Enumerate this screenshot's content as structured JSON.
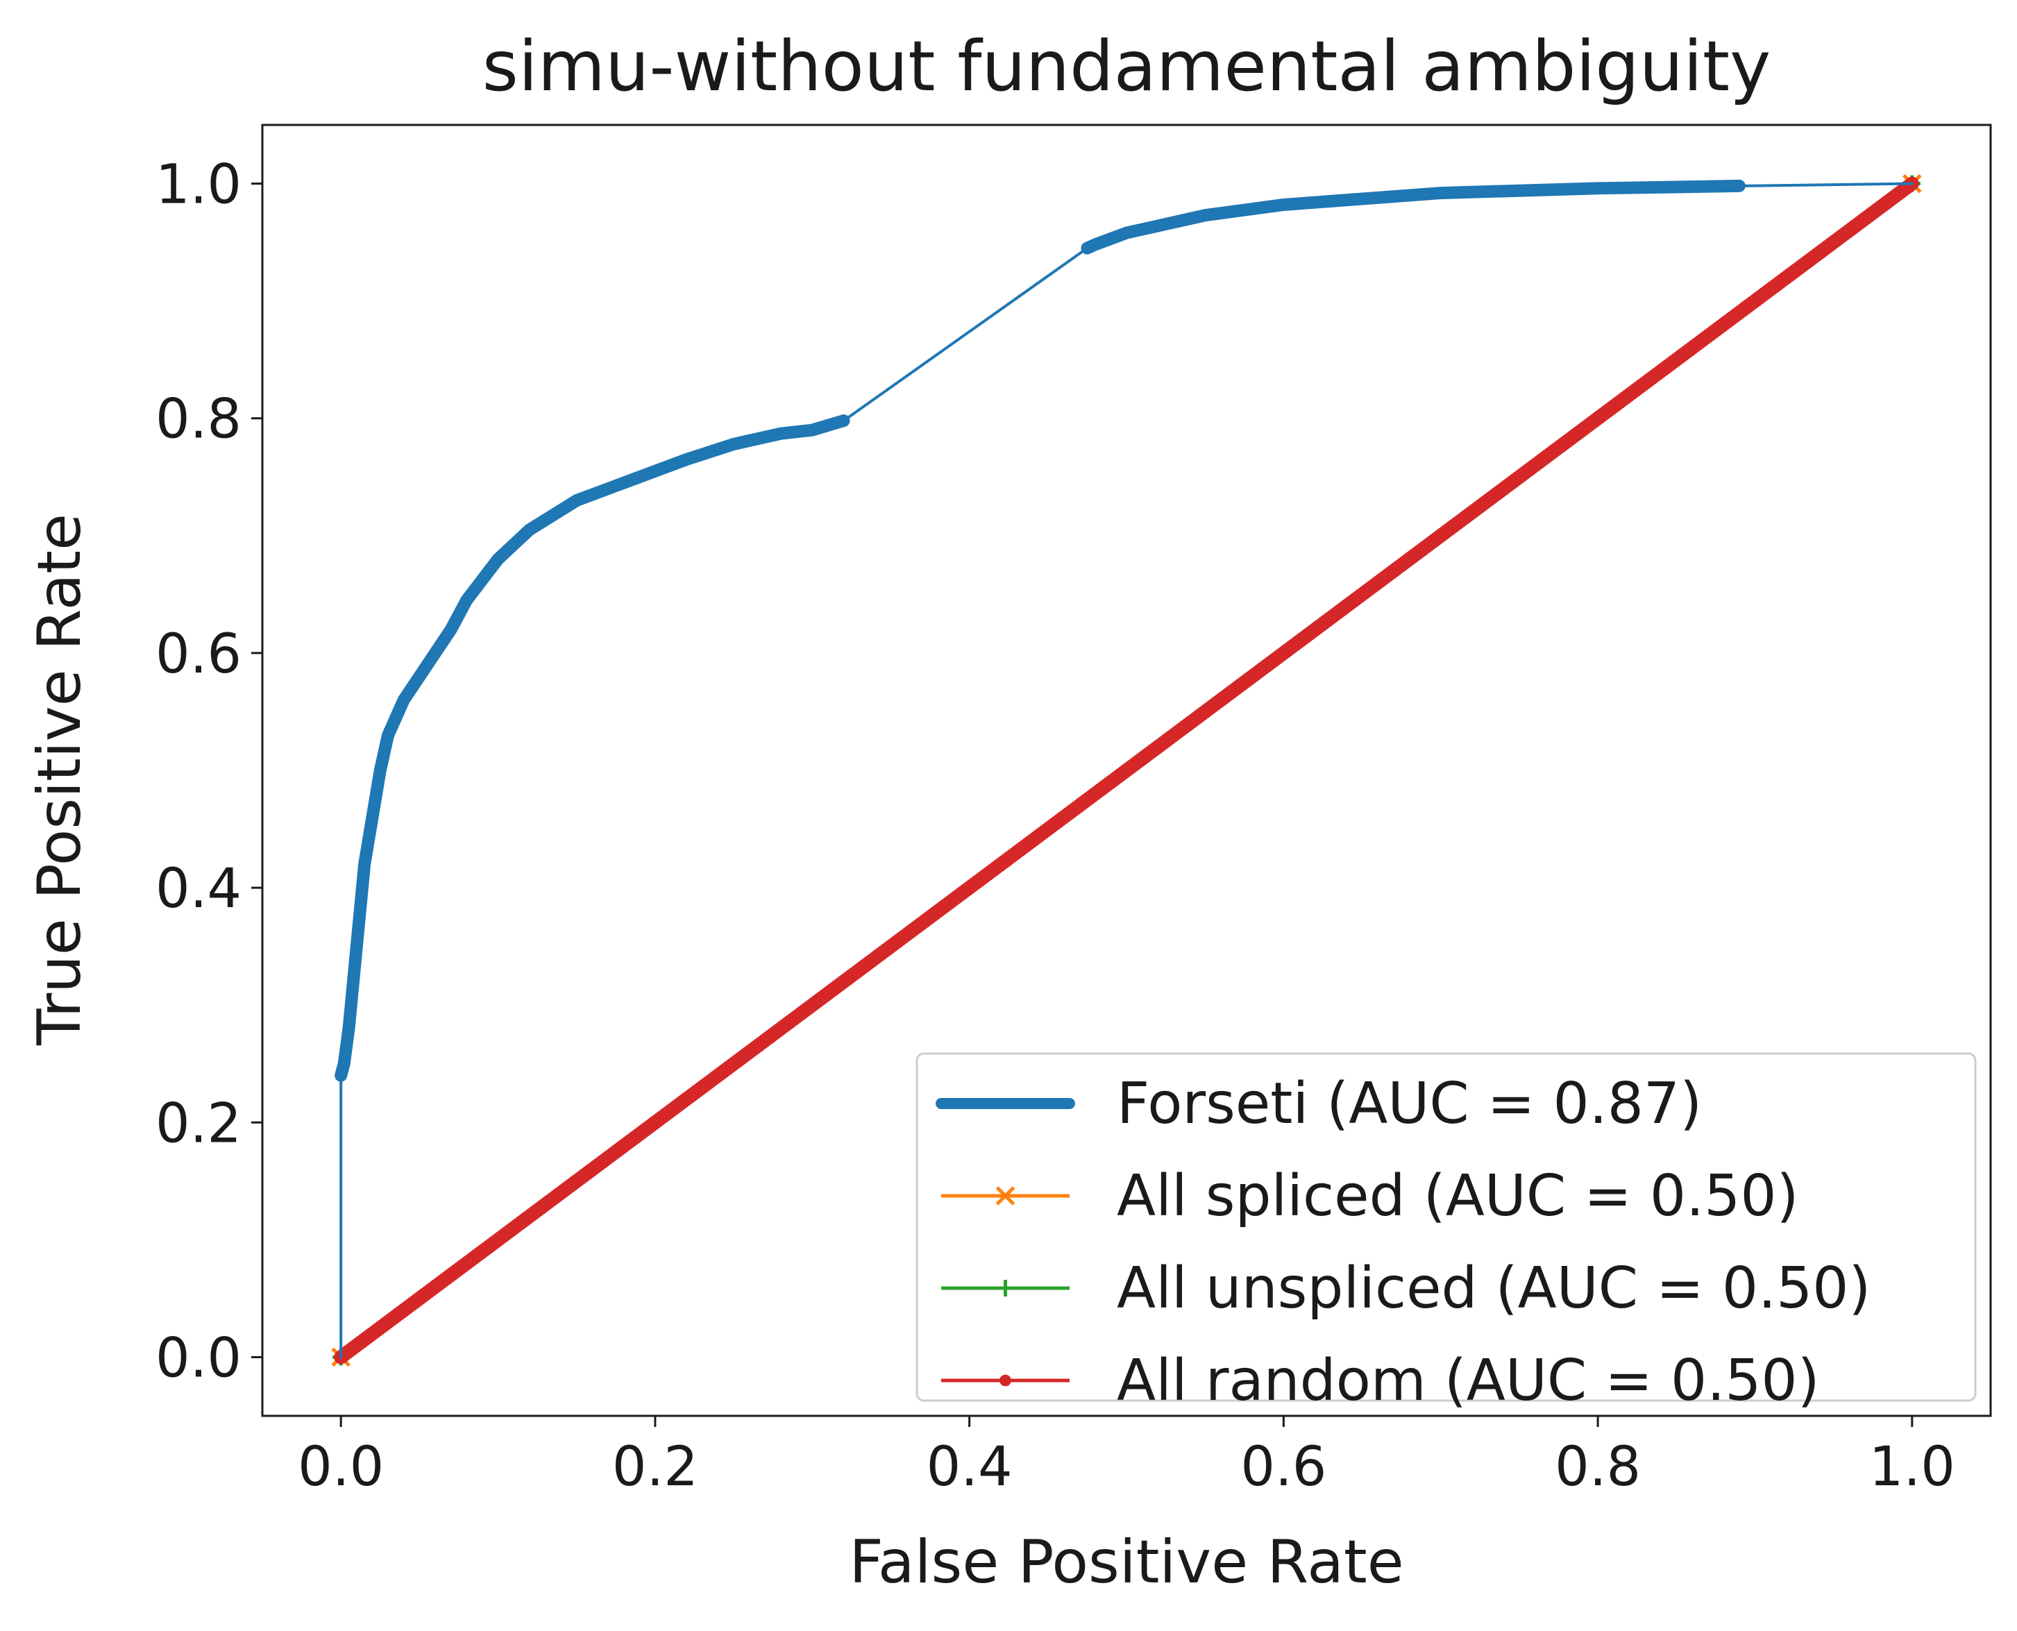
{
  "chart_data": {
    "type": "line",
    "title": "simu-without fundamental ambiguity",
    "xlabel": "False Positive Rate",
    "ylabel": "True Positive Rate",
    "xlim": [
      -0.05,
      1.05
    ],
    "ylim": [
      -0.05,
      1.05
    ],
    "x_ticks": [
      "0.0",
      "0.2",
      "0.4",
      "0.6",
      "0.8",
      "1.0"
    ],
    "y_ticks": [
      "0.0",
      "0.2",
      "0.4",
      "0.6",
      "0.8",
      "1.0"
    ],
    "x_tick_values": [
      0,
      0.2,
      0.4,
      0.6,
      0.8,
      1.0
    ],
    "y_tick_values": [
      0,
      0.2,
      0.4,
      0.6,
      0.8,
      1.0
    ],
    "grid": false,
    "legend_position": "lower-right",
    "series": [
      {
        "name": "Forseti (AUC = 0.87)",
        "color": "#1f77b4",
        "marker": "thick-line",
        "x": [
          0.0,
          0.0,
          0.002,
          0.005,
          0.01,
          0.015,
          0.02,
          0.025,
          0.03,
          0.04,
          0.05,
          0.06,
          0.07,
          0.08,
          0.1,
          0.12,
          0.15,
          0.18,
          0.2,
          0.22,
          0.25,
          0.28,
          0.3,
          0.32,
          0.475,
          0.48,
          0.5,
          0.55,
          0.6,
          0.7,
          0.8,
          0.89,
          1.0
        ],
        "y": [
          0.0,
          0.24,
          0.25,
          0.28,
          0.35,
          0.42,
          0.46,
          0.5,
          0.53,
          0.56,
          0.58,
          0.6,
          0.62,
          0.645,
          0.68,
          0.705,
          0.73,
          0.745,
          0.755,
          0.765,
          0.778,
          0.787,
          0.79,
          0.798,
          0.945,
          0.948,
          0.958,
          0.973,
          0.982,
          0.992,
          0.996,
          0.998,
          1.0
        ]
      },
      {
        "name": "All spliced (AUC = 0.50)",
        "color": "#ff7f0e",
        "marker": "x",
        "x": [
          0.0,
          1.0
        ],
        "y": [
          0.0,
          1.0
        ]
      },
      {
        "name": "All unspliced (AUC = 0.50)",
        "color": "#2ca02c",
        "marker": "+",
        "x": [
          0.0,
          1.0
        ],
        "y": [
          0.0,
          1.0
        ]
      },
      {
        "name": "All random (AUC = 0.50)",
        "color": "#d62728",
        "marker": "dot",
        "x": [
          0.0,
          1.0
        ],
        "y": [
          0.0,
          1.0
        ]
      }
    ]
  }
}
